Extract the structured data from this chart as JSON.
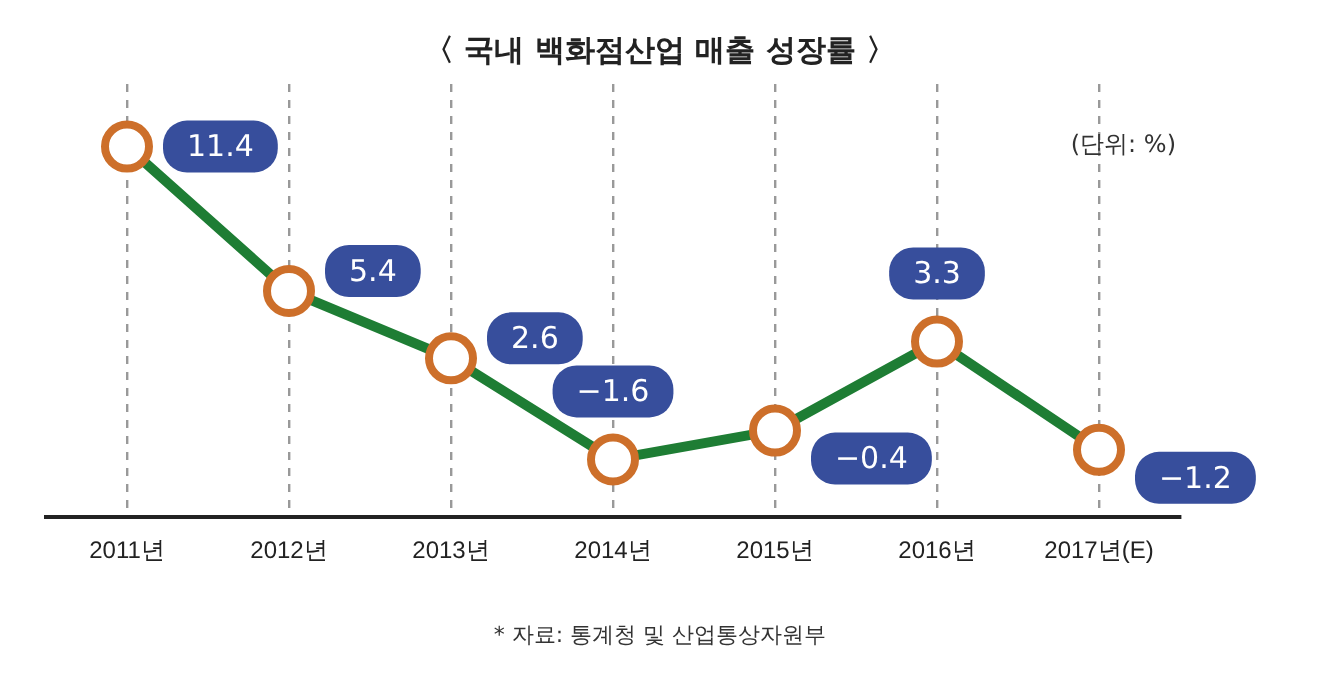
{
  "chart_data": {
    "type": "line",
    "title": "〈 국내 백화점산업 매출 성장률 〉",
    "annotations": [
      "(단위: %)",
      "* 자료: 통계청 및 산업통상자원부"
    ],
    "categories": [
      "2011년",
      "2012년",
      "2013년",
      "2014년",
      "2015년",
      "2016년",
      "2017년(E)"
    ],
    "series": [
      {
        "color": "#1e7d34",
        "values": [
          11.4,
          5.4,
          2.6,
          -1.6,
          -0.4,
          3.3,
          -1.2
        ]
      }
    ],
    "tick_labels": "x",
    "data_labels": true,
    "marker": "circle",
    "legend": false,
    "grid": "x"
  }
}
